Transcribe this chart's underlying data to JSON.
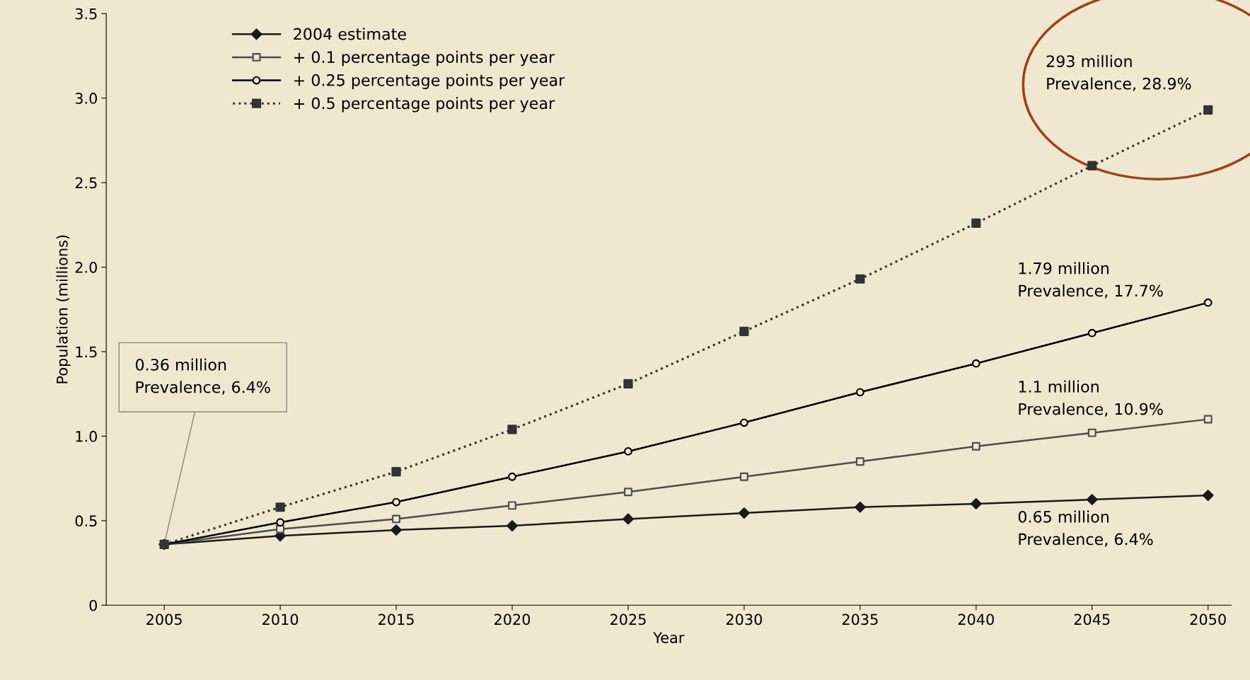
{
  "chart_data": {
    "type": "line",
    "xlabel": "Year",
    "ylabel": "Population (millions)",
    "x": [
      2005,
      2010,
      2015,
      2020,
      2025,
      2030,
      2035,
      2040,
      2045,
      2050
    ],
    "series": [
      {
        "name": "2004 estimate",
        "color": "#1a1a1a",
        "marker": "diamond",
        "line_style": "solid",
        "values": [
          0.36,
          0.41,
          0.445,
          0.47,
          0.51,
          0.545,
          0.58,
          0.6,
          0.625,
          0.65
        ]
      },
      {
        "name": "+ 0.1 percentage points per year",
        "color": "#4d4d4d",
        "marker": "square",
        "line_style": "solid",
        "values": [
          0.36,
          0.45,
          0.51,
          0.59,
          0.67,
          0.76,
          0.85,
          0.94,
          1.02,
          1.1
        ]
      },
      {
        "name": "+ 0.25 percentage points per year",
        "color": "#000000",
        "marker": "circle",
        "line_style": "solid",
        "values": [
          0.36,
          0.49,
          0.61,
          0.76,
          0.91,
          1.08,
          1.26,
          1.43,
          1.61,
          1.79
        ]
      },
      {
        "name": "+ 0.5 percentage points per year",
        "color": "#333333",
        "marker": "square",
        "line_style": "dotted",
        "values": [
          0.36,
          0.58,
          0.79,
          1.04,
          1.31,
          1.62,
          1.93,
          2.26,
          2.6,
          2.93
        ]
      }
    ],
    "xlim": [
      2002.5,
      2051
    ],
    "ylim": [
      0,
      3.5
    ],
    "xticks": [
      2005,
      2010,
      2015,
      2020,
      2025,
      2030,
      2035,
      2040,
      2045,
      2050
    ],
    "yticks": [
      0,
      0.5,
      {
        "value": 1,
        "label": "1.0"
      },
      1.5,
      {
        "value": 2,
        "label": "2.0"
      },
      2.5,
      {
        "value": 3,
        "label": "3.0"
      },
      3.5
    ],
    "grid": false,
    "legend": "top left",
    "annotations": [
      {
        "text": "0.36 million\nPrevalence, 6.4%",
        "x": 2005,
        "y": 0.36
      },
      "293 million\nPrevalence, 28.9%",
      "1.79 million\nPrevalence, 17.7%",
      "1.1 million\nPrevalence, 10.9%",
      "0.65 million\nPrevalence, 6.4%"
    ]
  }
}
